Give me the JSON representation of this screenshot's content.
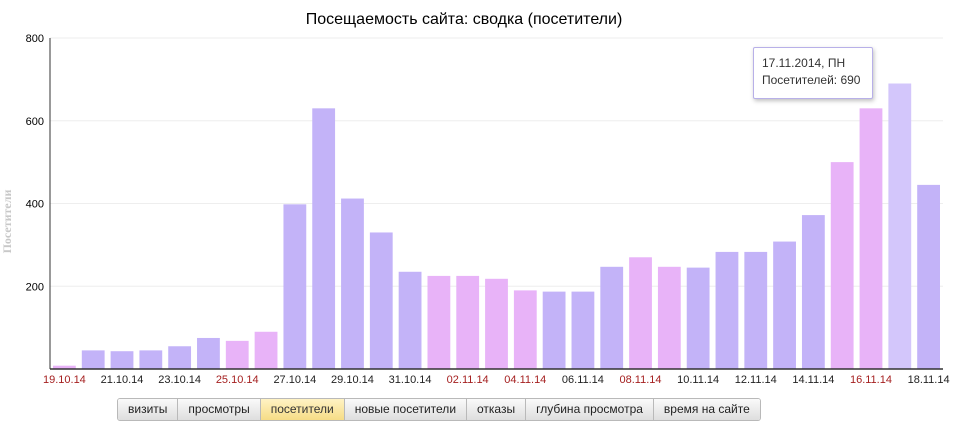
{
  "chart_data": {
    "type": "bar",
    "title": "Посещаемость сайта: сводка (посетители)",
    "ylabel": "Посетители",
    "ylim": [
      0,
      800
    ],
    "yticks": [
      200,
      400,
      600,
      800
    ],
    "grid": true,
    "categories": [
      "19.10.14",
      "20.10.14",
      "21.10.14",
      "22.10.14",
      "23.10.14",
      "24.10.14",
      "25.10.14",
      "26.10.14",
      "27.10.14",
      "28.10.14",
      "29.10.14",
      "30.10.14",
      "31.10.14",
      "01.11.14",
      "02.11.14",
      "03.11.14",
      "04.11.14",
      "05.11.14",
      "06.11.14",
      "07.11.14",
      "08.11.14",
      "09.11.14",
      "10.11.14",
      "11.11.14",
      "12.11.14",
      "13.11.14",
      "14.11.14",
      "15.11.14",
      "16.11.14",
      "17.11.14",
      "18.11.14"
    ],
    "x_tick_labels": [
      "19.10.14",
      "21.10.14",
      "23.10.14",
      "25.10.14",
      "27.10.14",
      "29.10.14",
      "31.10.14",
      "02.11.14",
      "04.11.14",
      "06.11.14",
      "08.11.14",
      "10.11.14",
      "12.11.14",
      "14.11.14",
      "16.11.14",
      "18.11.14"
    ],
    "weekend_labels": [
      "19.10.14",
      "25.10.14",
      "02.11.14",
      "04.11.14",
      "08.11.14",
      "16.11.14"
    ],
    "values": [
      8,
      45,
      43,
      45,
      55,
      75,
      68,
      90,
      398,
      630,
      412,
      330,
      235,
      225,
      225,
      218,
      190,
      187,
      187,
      247,
      270,
      247,
      245,
      283,
      283,
      308,
      372,
      500,
      630,
      690,
      445
    ],
    "highlighted": [
      "19.10.14",
      "25.10.14",
      "26.10.14",
      "01.11.14",
      "02.11.14",
      "03.11.14",
      "04.11.14",
      "08.11.14",
      "09.11.14",
      "15.11.14",
      "16.11.14"
    ],
    "hovered": "17.11.14",
    "colors": {
      "weekday": "#c3b3f8",
      "weekend": "#e8b3f8",
      "hovered": "#d3c6fb",
      "weekend_label": "#a52020",
      "label": "#222222",
      "grid": "#eeeeee",
      "axis": "#333333",
      "ylabel": "#c8c8c8"
    }
  },
  "tooltip": {
    "date": "17.11.2014, ПН",
    "value_text": "Посетителей: 690"
  },
  "tabs": [
    {
      "label": "визиты",
      "active": false
    },
    {
      "label": "просмотры",
      "active": false
    },
    {
      "label": "посетители",
      "active": true
    },
    {
      "label": "новые посетители",
      "active": false
    },
    {
      "label": "отказы",
      "active": false
    },
    {
      "label": "глубина просмотра",
      "active": false
    },
    {
      "label": "время на сайте",
      "active": false
    }
  ]
}
